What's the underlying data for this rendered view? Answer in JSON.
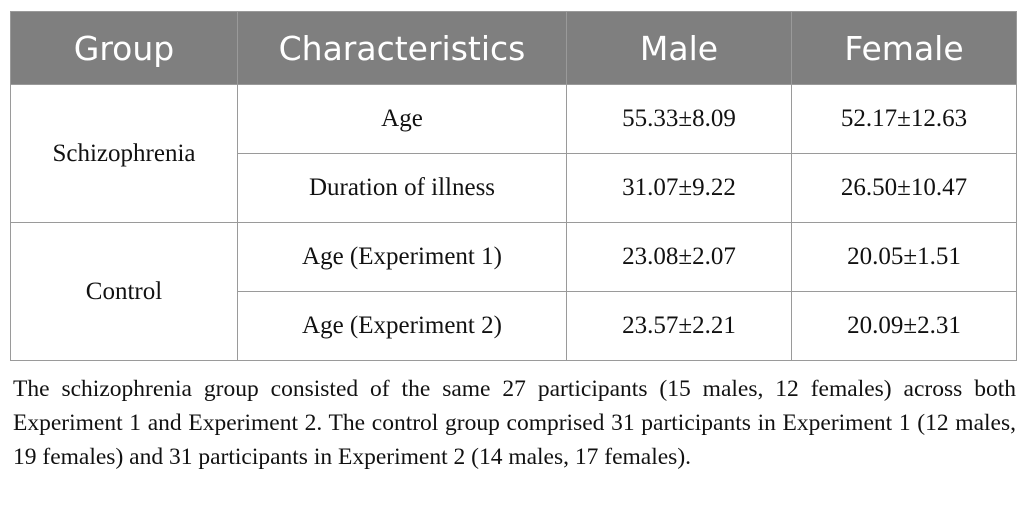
{
  "table": {
    "headers": [
      "Group",
      "Characteristics",
      "Male",
      "Female"
    ],
    "groups": [
      {
        "name": "Schizophrenia",
        "rows": [
          {
            "characteristic": "Age",
            "male": "55.33±8.09",
            "female": "52.17±12.63"
          },
          {
            "characteristic": "Duration of illness",
            "male": "31.07±9.22",
            "female": "26.50±10.47"
          }
        ]
      },
      {
        "name": "Control",
        "rows": [
          {
            "characteristic": "Age (Experiment 1)",
            "male": "23.08±2.07",
            "female": "20.05±1.51"
          },
          {
            "characteristic": "Age (Experiment 2)",
            "male": "23.57±2.21",
            "female": "20.09±2.31"
          }
        ]
      }
    ]
  },
  "footnote": "The schizophrenia group consisted of the same 27 participants (15 males, 12 females) across both Experiment 1 and Experiment 2. The control group comprised 31 participants in Experiment 1 (12 males, 19 females) and 31 participants in Experiment 2 (14 males, 17 females)."
}
